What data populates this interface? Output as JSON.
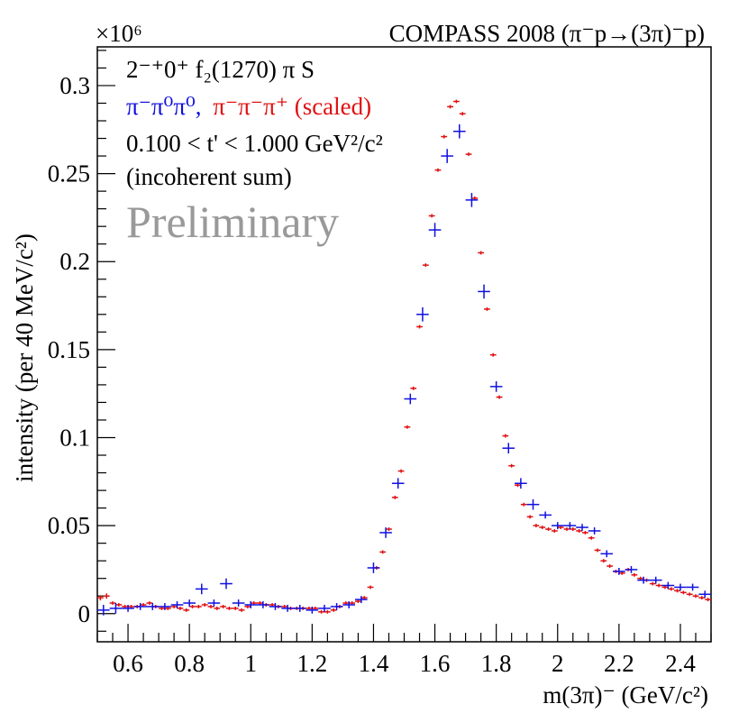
{
  "chart_data": {
    "type": "scatter",
    "title": "COMPASS 2008 (π⁻p→(3π)⁻p)",
    "xlabel": "m(3π)⁻ (GeV/c²)",
    "ylabel": "intensity (per 40 MeV/c²)",
    "y_exponent": "×10⁶",
    "xlim": [
      0.5,
      2.5
    ],
    "ylim": [
      -0.016,
      0.322
    ],
    "x_ticks": [
      0.6,
      0.8,
      1.0,
      1.2,
      1.4,
      1.6,
      1.8,
      2.0,
      2.2,
      2.4
    ],
    "x_tick_labels": [
      "0.6",
      "0.8",
      "1",
      "1.2",
      "1.4",
      "1.6",
      "1.8",
      "2",
      "2.2",
      "2.4"
    ],
    "y_ticks": [
      0,
      0.05,
      0.1,
      0.15,
      0.2,
      0.25,
      0.3
    ],
    "y_tick_labels": [
      "0",
      "0.05",
      "0.1",
      "0.15",
      "0.2",
      "0.25",
      "0.3"
    ],
    "legend": {
      "wave": "2⁻⁺0⁺ f₂(1270) π S",
      "channel_neutral": "π⁻π⁰π⁰,",
      "channel_charged": "π⁻π⁻π⁺ (scaled)",
      "tprime": "0.100 < t' < 1.000 GeV²/c²",
      "note": "(incoherent sum)",
      "watermark": "Preliminary"
    },
    "series": [
      {
        "name": "π⁻π⁰π⁰",
        "color": "#1010e0",
        "bin_width": 0.04,
        "x": [
          0.52,
          0.56,
          0.6,
          0.64,
          0.68,
          0.72,
          0.76,
          0.8,
          0.84,
          0.88,
          0.92,
          0.96,
          1.0,
          1.04,
          1.08,
          1.12,
          1.16,
          1.2,
          1.24,
          1.28,
          1.32,
          1.36,
          1.4,
          1.44,
          1.48,
          1.52,
          1.56,
          1.6,
          1.64,
          1.68,
          1.72,
          1.76,
          1.8,
          1.84,
          1.88,
          1.92,
          1.96,
          2.0,
          2.04,
          2.08,
          2.12,
          2.16,
          2.2,
          2.24,
          2.28,
          2.32,
          2.36,
          2.4,
          2.44,
          2.48
        ],
        "y": [
          0.002,
          0.003,
          0.003,
          0.004,
          0.004,
          0.004,
          0.005,
          0.006,
          0.014,
          0.006,
          0.017,
          0.006,
          0.005,
          0.005,
          0.004,
          0.003,
          0.003,
          0.002,
          0.003,
          0.004,
          0.005,
          0.008,
          0.026,
          0.046,
          0.074,
          0.122,
          0.17,
          0.218,
          0.26,
          0.274,
          0.235,
          0.183,
          0.129,
          0.094,
          0.074,
          0.062,
          0.056,
          0.05,
          0.05,
          0.049,
          0.047,
          0.034,
          0.024,
          0.025,
          0.019,
          0.019,
          0.016,
          0.015,
          0.015,
          0.011
        ],
        "y_err": [
          0.003,
          0.003,
          0.002,
          0.002,
          0.002,
          0.002,
          0.002,
          0.002,
          0.003,
          0.002,
          0.003,
          0.002,
          0.002,
          0.002,
          0.002,
          0.002,
          0.002,
          0.002,
          0.002,
          0.002,
          0.002,
          0.002,
          0.003,
          0.003,
          0.003,
          0.003,
          0.004,
          0.004,
          0.004,
          0.004,
          0.004,
          0.004,
          0.003,
          0.003,
          0.003,
          0.003,
          0.002,
          0.002,
          0.002,
          0.002,
          0.002,
          0.002,
          0.002,
          0.002,
          0.002,
          0.002,
          0.002,
          0.002,
          0.002,
          0.002
        ]
      },
      {
        "name": "π⁻π⁻π⁺ (scaled)",
        "color": "#e01010",
        "bin_width": 0.02,
        "x": [
          0.51,
          0.53,
          0.55,
          0.57,
          0.59,
          0.61,
          0.63,
          0.65,
          0.67,
          0.69,
          0.71,
          0.73,
          0.75,
          0.77,
          0.79,
          0.81,
          0.83,
          0.85,
          0.87,
          0.89,
          0.91,
          0.93,
          0.95,
          0.97,
          0.99,
          1.01,
          1.03,
          1.05,
          1.07,
          1.09,
          1.11,
          1.13,
          1.15,
          1.17,
          1.19,
          1.21,
          1.23,
          1.25,
          1.27,
          1.29,
          1.31,
          1.33,
          1.35,
          1.37,
          1.39,
          1.41,
          1.43,
          1.45,
          1.47,
          1.49,
          1.51,
          1.53,
          1.55,
          1.57,
          1.59,
          1.61,
          1.63,
          1.65,
          1.67,
          1.69,
          1.71,
          1.73,
          1.75,
          1.77,
          1.79,
          1.81,
          1.83,
          1.85,
          1.87,
          1.89,
          1.91,
          1.93,
          1.95,
          1.97,
          1.99,
          2.01,
          2.03,
          2.05,
          2.07,
          2.09,
          2.11,
          2.13,
          2.15,
          2.17,
          2.19,
          2.21,
          2.23,
          2.25,
          2.27,
          2.29,
          2.31,
          2.33,
          2.35,
          2.37,
          2.39,
          2.41,
          2.43,
          2.45,
          2.47,
          2.49
        ],
        "y": [
          0.009,
          0.01,
          0.006,
          0.005,
          0.004,
          0.004,
          0.004,
          0.005,
          0.006,
          0.004,
          0.003,
          0.003,
          0.004,
          0.003,
          0.002,
          0.004,
          0.004,
          0.005,
          0.004,
          0.003,
          0.004,
          0.003,
          0.003,
          0.002,
          0.004,
          0.006,
          0.006,
          0.005,
          0.005,
          0.004,
          0.004,
          0.003,
          0.003,
          0.003,
          0.003,
          0.003,
          0.001,
          0.001,
          0.002,
          0.004,
          0.006,
          0.006,
          0.007,
          0.009,
          0.015,
          0.026,
          0.035,
          0.048,
          0.066,
          0.081,
          0.106,
          0.128,
          0.163,
          0.198,
          0.226,
          0.252,
          0.271,
          0.288,
          0.291,
          0.284,
          0.261,
          0.236,
          0.205,
          0.173,
          0.147,
          0.123,
          0.101,
          0.084,
          0.073,
          0.062,
          0.055,
          0.05,
          0.049,
          0.048,
          0.047,
          0.049,
          0.048,
          0.048,
          0.047,
          0.046,
          0.043,
          0.036,
          0.03,
          0.027,
          0.024,
          0.023,
          0.025,
          0.022,
          0.02,
          0.019,
          0.017,
          0.016,
          0.015,
          0.014,
          0.013,
          0.012,
          0.011,
          0.01,
          0.009,
          0.008
        ],
        "y_err": [
          0.0015,
          0.0015,
          0.001,
          0.001,
          0.001,
          0.001,
          0.001,
          0.001,
          0.001,
          0.001,
          0.001,
          0.001,
          0.001,
          0.001,
          0.001,
          0.001,
          0.001,
          0.001,
          0.001,
          0.001,
          0.001,
          0.001,
          0.001,
          0.001,
          0.001,
          0.001,
          0.001,
          0.001,
          0.001,
          0.001,
          0.001,
          0.001,
          0.001,
          0.001,
          0.001,
          0.001,
          0.001,
          0.001,
          0.001,
          0.001,
          0.001,
          0.001,
          0.001,
          0.001,
          0.001,
          0.001,
          0.001,
          0.001,
          0.001,
          0.001,
          0.001,
          0.001,
          0.001,
          0.001,
          0.001,
          0.001,
          0.001,
          0.001,
          0.001,
          0.001,
          0.001,
          0.001,
          0.001,
          0.001,
          0.001,
          0.001,
          0.001,
          0.001,
          0.001,
          0.001,
          0.001,
          0.001,
          0.001,
          0.001,
          0.001,
          0.001,
          0.001,
          0.001,
          0.001,
          0.001,
          0.001,
          0.001,
          0.001,
          0.001,
          0.001,
          0.001,
          0.001,
          0.001,
          0.001,
          0.001,
          0.001,
          0.001,
          0.001,
          0.001,
          0.001,
          0.001,
          0.001,
          0.001,
          0.001,
          0.001
        ]
      }
    ]
  }
}
